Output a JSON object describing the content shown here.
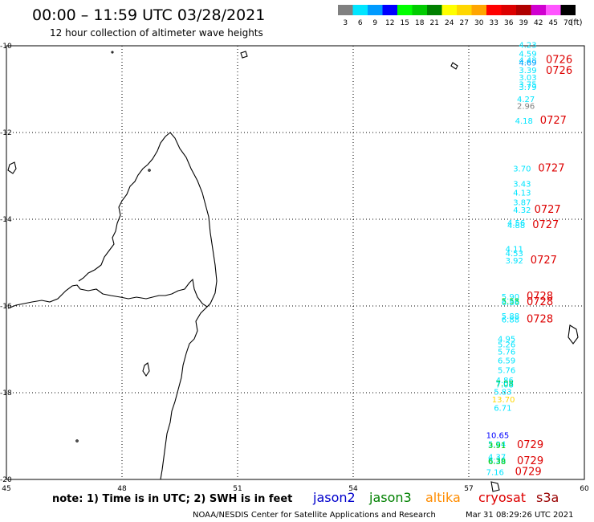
{
  "header": {
    "title": "00:00 – 11:59 UTC 03/28/2021",
    "subtitle": "12 hour collection of altimeter wave heights"
  },
  "legend": {
    "unit": "(ft)",
    "bins": [
      {
        "label": "3",
        "color": "#808080"
      },
      {
        "label": "6",
        "color": "#00e5ff"
      },
      {
        "label": "9",
        "color": "#009bff"
      },
      {
        "label": "12",
        "color": "#0000ff"
      },
      {
        "label": "15",
        "color": "#00ff00"
      },
      {
        "label": "18",
        "color": "#00cc00"
      },
      {
        "label": "21",
        "color": "#008000"
      },
      {
        "label": "24",
        "color": "#ffff00"
      },
      {
        "label": "27",
        "color": "#ffd700"
      },
      {
        "label": "30",
        "color": "#ffa500"
      },
      {
        "label": "33",
        "color": "#ff0000"
      },
      {
        "label": "36",
        "color": "#dd0000"
      },
      {
        "label": "39",
        "color": "#b00000"
      },
      {
        "label": "42",
        "color": "#d000d0"
      },
      {
        "label": "45",
        "color": "#ff55ff"
      },
      {
        "label": "70",
        "color": "#000000"
      }
    ]
  },
  "axes": {
    "lon_ticks": [
      "45",
      "48",
      "51",
      "54",
      "57",
      "60"
    ],
    "lat_ticks": [
      "-10",
      "-12",
      "-14",
      "-16",
      "-18",
      "-20"
    ]
  },
  "observations": [
    {
      "v": "4.23",
      "lon": 58.3,
      "lat": -10.05,
      "c": "#00e5ff"
    },
    {
      "v": "4.59",
      "lon": 58.3,
      "lat": -10.25,
      "c": "#00e5ff"
    },
    {
      "v": "4.48",
      "lon": 58.3,
      "lat": -10.4,
      "c": "#00e5ff"
    },
    {
      "v": "4.69",
      "lon": 58.3,
      "lat": -10.45,
      "c": "#009bff"
    },
    {
      "v": "3.39",
      "lon": 58.3,
      "lat": -10.63,
      "c": "#00e5ff"
    },
    {
      "v": "3.03",
      "lon": 58.3,
      "lat": -10.8,
      "c": "#00e5ff"
    },
    {
      "v": "3.75",
      "lon": 58.3,
      "lat": -10.95,
      "c": "#00e5ff"
    },
    {
      "v": "3.79",
      "lon": 58.3,
      "lat": -11.02,
      "c": "#00e5ff"
    },
    {
      "v": "4.27",
      "lon": 58.25,
      "lat": -11.3,
      "c": "#00e5ff"
    },
    {
      "v": "2.96",
      "lon": 58.25,
      "lat": -11.45,
      "c": "#808080"
    },
    {
      "v": "4.18",
      "lon": 58.2,
      "lat": -11.8,
      "c": "#00e5ff"
    },
    {
      "v": "3.70",
      "lon": 58.15,
      "lat": -12.9,
      "c": "#00e5ff"
    },
    {
      "v": "3.43",
      "lon": 58.15,
      "lat": -13.25,
      "c": "#00e5ff"
    },
    {
      "v": "4.13",
      "lon": 58.15,
      "lat": -13.45,
      "c": "#00e5ff"
    },
    {
      "v": "3.87",
      "lon": 58.15,
      "lat": -13.68,
      "c": "#00e5ff"
    },
    {
      "v": "4.32",
      "lon": 58.15,
      "lat": -13.85,
      "c": "#00e5ff"
    },
    {
      "v": "4.56",
      "lon": 58.0,
      "lat": -14.15,
      "c": "#00e5ff"
    },
    {
      "v": "4.88",
      "lon": 58.0,
      "lat": -14.2,
      "c": "#00e5ff"
    },
    {
      "v": "4.11",
      "lon": 57.95,
      "lat": -14.75,
      "c": "#00e5ff"
    },
    {
      "v": "4.53",
      "lon": 57.95,
      "lat": -14.85,
      "c": "#00e5ff"
    },
    {
      "v": "3.92",
      "lon": 57.95,
      "lat": -15.02,
      "c": "#00e5ff"
    },
    {
      "v": "5.90",
      "lon": 57.85,
      "lat": -15.85,
      "c": "#00e5ff"
    },
    {
      "v": "5.58",
      "lon": 57.85,
      "lat": -15.95,
      "c": "#00cc00"
    },
    {
      "v": "6.86",
      "lon": 57.85,
      "lat": -15.98,
      "c": "#00e5ff"
    },
    {
      "v": "5.88",
      "lon": 57.85,
      "lat": -16.3,
      "c": "#00e5ff"
    },
    {
      "v": "6.88",
      "lon": 57.85,
      "lat": -16.38,
      "c": "#00e5ff"
    },
    {
      "v": "4.95",
      "lon": 57.75,
      "lat": -16.82,
      "c": "#00e5ff"
    },
    {
      "v": "5.26",
      "lon": 57.75,
      "lat": -16.95,
      "c": "#00e5ff"
    },
    {
      "v": "5.76",
      "lon": 57.75,
      "lat": -17.12,
      "c": "#00e5ff"
    },
    {
      "v": "6.59",
      "lon": 57.75,
      "lat": -17.32,
      "c": "#00e5ff"
    },
    {
      "v": "5.76",
      "lon": 57.75,
      "lat": -17.55,
      "c": "#00e5ff"
    },
    {
      "v": "4.86",
      "lon": 57.7,
      "lat": -17.78,
      "c": "#00e5ff"
    },
    {
      "v": "7.08",
      "lon": 57.7,
      "lat": -17.85,
      "c": "#00cc00"
    },
    {
      "v": "7.08",
      "lon": 57.7,
      "lat": -17.88,
      "c": "#00e5ff"
    },
    {
      "v": "5.83",
      "lon": 57.65,
      "lat": -18.05,
      "c": "#00e5ff"
    },
    {
      "v": "13.70",
      "lon": 57.6,
      "lat": -18.22,
      "c": "#ffd700"
    },
    {
      "v": "6.71",
      "lon": 57.65,
      "lat": -18.42,
      "c": "#00e5ff"
    },
    {
      "v": "10.65",
      "lon": 57.45,
      "lat": -19.05,
      "c": "#0000ff"
    },
    {
      "v": "5.94",
      "lon": 57.5,
      "lat": -19.25,
      "c": "#00e5ff"
    },
    {
      "v": "3.91",
      "lon": 57.5,
      "lat": -19.28,
      "c": "#00cc00"
    },
    {
      "v": "4.37",
      "lon": 57.5,
      "lat": -19.55,
      "c": "#00e5ff"
    },
    {
      "v": "6.36",
      "lon": 57.5,
      "lat": -19.62,
      "c": "#00e5ff"
    },
    {
      "v": "6.38",
      "lon": 57.5,
      "lat": -19.65,
      "c": "#00cc00"
    },
    {
      "v": "7.16",
      "lon": 57.45,
      "lat": -19.9,
      "c": "#00e5ff"
    }
  ],
  "time_labels": [
    {
      "v": "0726",
      "lon": 59.0,
      "lat": -10.4
    },
    {
      "v": "0726",
      "lon": 59.0,
      "lat": -10.65
    },
    {
      "v": "0727",
      "lon": 58.85,
      "lat": -11.8
    },
    {
      "v": "0727",
      "lon": 58.8,
      "lat": -12.9
    },
    {
      "v": "0727",
      "lon": 58.7,
      "lat": -13.85
    },
    {
      "v": "0727",
      "lon": 58.65,
      "lat": -14.2
    },
    {
      "v": "0727",
      "lon": 58.6,
      "lat": -15.02
    },
    {
      "v": "0728",
      "lon": 58.5,
      "lat": -15.85
    },
    {
      "v": "0728",
      "lon": 58.5,
      "lat": -15.98
    },
    {
      "v": "0728",
      "lon": 58.5,
      "lat": -16.38
    },
    {
      "v": "0729",
      "lon": 58.25,
      "lat": -19.28
    },
    {
      "v": "0729",
      "lon": 58.25,
      "lat": -19.65
    },
    {
      "v": "0729",
      "lon": 58.2,
      "lat": -19.9
    }
  ],
  "footer": {
    "note": "note: 1) Time is in UTC; 2) SWH is in feet",
    "satellites": [
      {
        "name": "jason2",
        "color": "#0000cc"
      },
      {
        "name": "jason3",
        "color": "#008000"
      },
      {
        "name": "altika",
        "color": "#ff8c00"
      },
      {
        "name": "cryosat",
        "color": "#dd0000"
      },
      {
        "name": "s3a",
        "color": "#990000"
      }
    ],
    "credit": "NOAA/NESDIS Center for Satellite Applications and Research",
    "timestamp": "Mar 31 08:29:26 UTC 2021"
  }
}
